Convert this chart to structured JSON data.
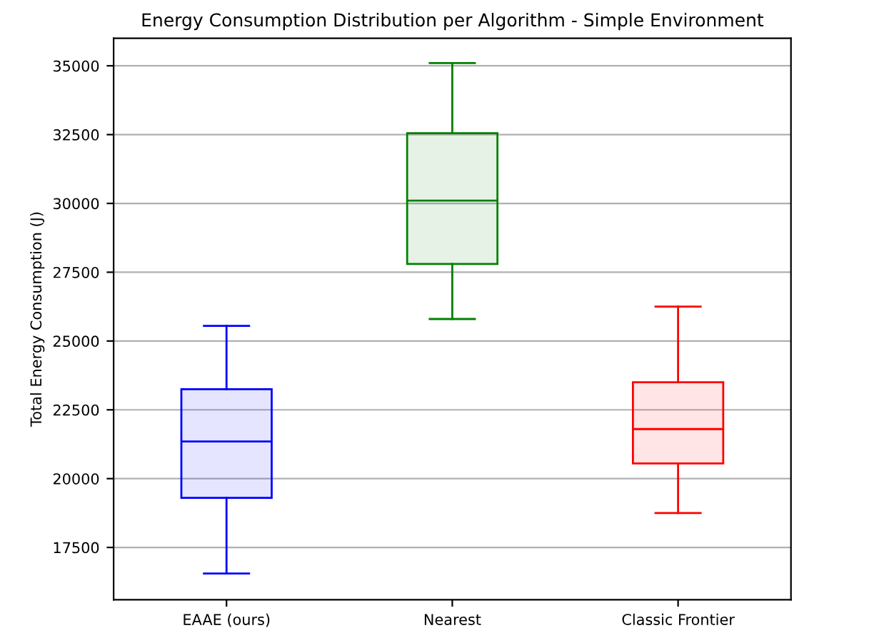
{
  "chart_data": {
    "type": "box",
    "title": "Energy Consumption Distribution per Algorithm - Simple Environment",
    "ylabel": "Total Energy Consumption (J)",
    "categories": [
      "EAAE (ours)",
      "Nearest",
      "Classic Frontier"
    ],
    "colors": [
      "#0000ff",
      "#008000",
      "#ff0000"
    ],
    "boxes": [
      {
        "low": 16550,
        "q1": 19300,
        "median": 21350,
        "q3": 23250,
        "high": 25550
      },
      {
        "low": 25800,
        "q1": 27800,
        "median": 30100,
        "q3": 32550,
        "high": 35100
      },
      {
        "low": 18750,
        "q1": 20550,
        "median": 21800,
        "q3": 23500,
        "high": 26250
      }
    ],
    "ylim": [
      15600,
      36000
    ],
    "yticks": [
      17500,
      20000,
      22500,
      25000,
      27500,
      30000,
      32500,
      35000
    ],
    "grid": "y"
  }
}
